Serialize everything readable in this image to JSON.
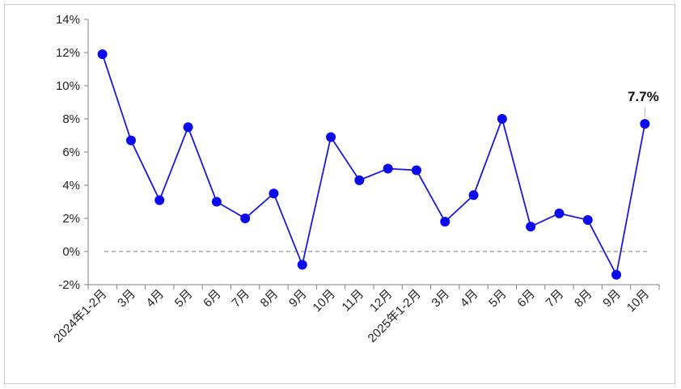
{
  "chart_data": {
    "type": "line",
    "title": "",
    "xlabel": "",
    "ylabel": "",
    "categories": [
      "2024年1-2月",
      "3月",
      "4月",
      "5月",
      "6月",
      "7月",
      "8月",
      "9月",
      "10月",
      "11月",
      "12月",
      "2025年1-2月",
      "3月",
      "4月",
      "5月",
      "6月",
      "7月",
      "8月",
      "9月",
      "10月"
    ],
    "series": [
      {
        "values": [
          11.9,
          6.7,
          3.1,
          7.5,
          3.0,
          2.0,
          3.5,
          -0.8,
          6.9,
          4.3,
          5.0,
          4.9,
          1.8,
          3.4,
          8.0,
          1.5,
          2.3,
          1.9,
          -1.4,
          7.7
        ]
      }
    ],
    "ylim": [
      -2,
      14
    ],
    "yticks": [
      -2,
      0,
      2,
      4,
      6,
      8,
      10,
      12,
      14
    ],
    "ytick_labels": [
      "-2%",
      "0%",
      "2%",
      "4%",
      "6%",
      "8%",
      "10%",
      "12%",
      "14%"
    ],
    "reference_line": {
      "value": 0,
      "style": "dashed"
    },
    "data_labels": [
      {
        "index": 19,
        "text": "7.7%"
      }
    ],
    "grid": false,
    "legend": "none",
    "colors": {
      "line": "#1a1adb",
      "marker": "#0a0af0",
      "axis": "#808080",
      "zero_line": "#a6a6a6"
    }
  }
}
